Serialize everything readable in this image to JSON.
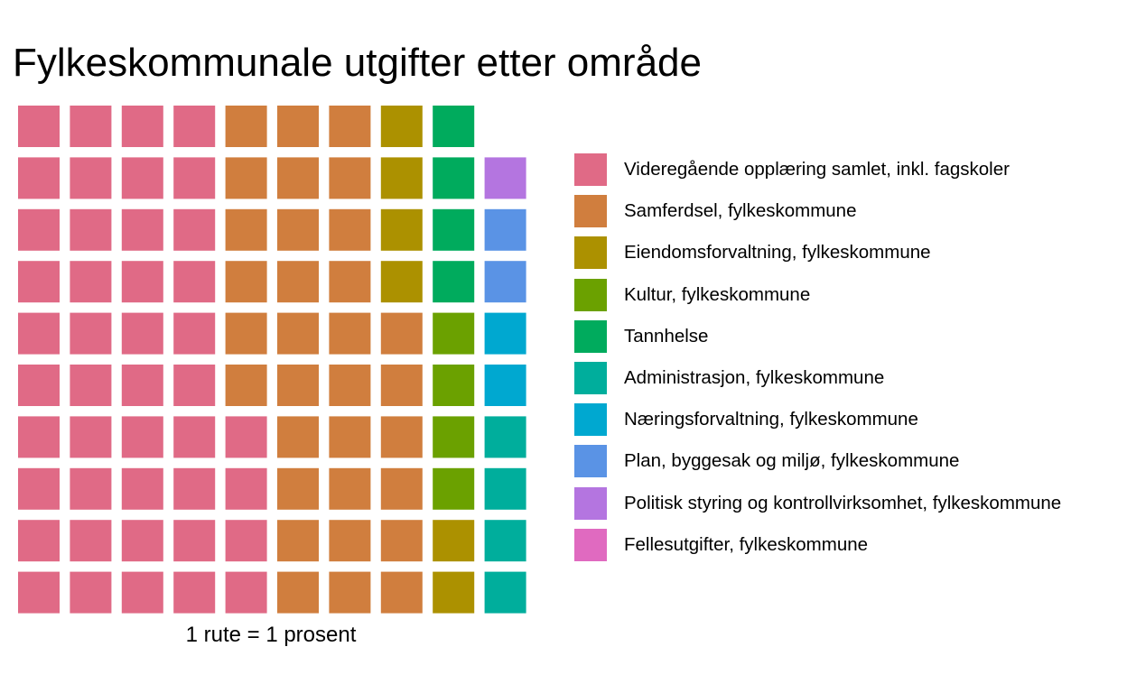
{
  "chart_data": {
    "type": "waffle",
    "title": "Fylkeskommunale utgifter etter område",
    "caption": "1 rute = 1 prosent",
    "grid": {
      "rows": 10,
      "cols": 10,
      "fill": "column-major-from-bottom"
    },
    "unit_percent_per_square": 1,
    "categories": [
      {
        "label": "Videregående opplæring samlet, inkl. fagskoler",
        "value": 44,
        "color": "#E06A86"
      },
      {
        "label": "Samferdsel, fylkeskommune",
        "value": 32,
        "color": "#D07E3E"
      },
      {
        "label": "Eiendomsforvaltning, fylkeskommune",
        "value": 6,
        "color": "#AC9100"
      },
      {
        "label": "Kultur, fylkeskommune",
        "value": 4,
        "color": "#6BA100"
      },
      {
        "label": "Tannhelse",
        "value": 4,
        "color": "#00AB5D"
      },
      {
        "label": "Administrasjon, fylkeskommune",
        "value": 4,
        "color": "#00AE9C"
      },
      {
        "label": "Næringsforvaltning, fylkeskommune",
        "value": 2,
        "color": "#00A8D0"
      },
      {
        "label": "Plan, byggesak og miljø, fylkeskommune",
        "value": 2,
        "color": "#5A93E5"
      },
      {
        "label": "Politisk styring og kontrollvirksomhet, fylkeskommune",
        "value": 1,
        "color": "#B475E0"
      },
      {
        "label": "Fellesutgifter, fylkeskommune",
        "value": 0,
        "color": "#E06AC0"
      }
    ]
  }
}
